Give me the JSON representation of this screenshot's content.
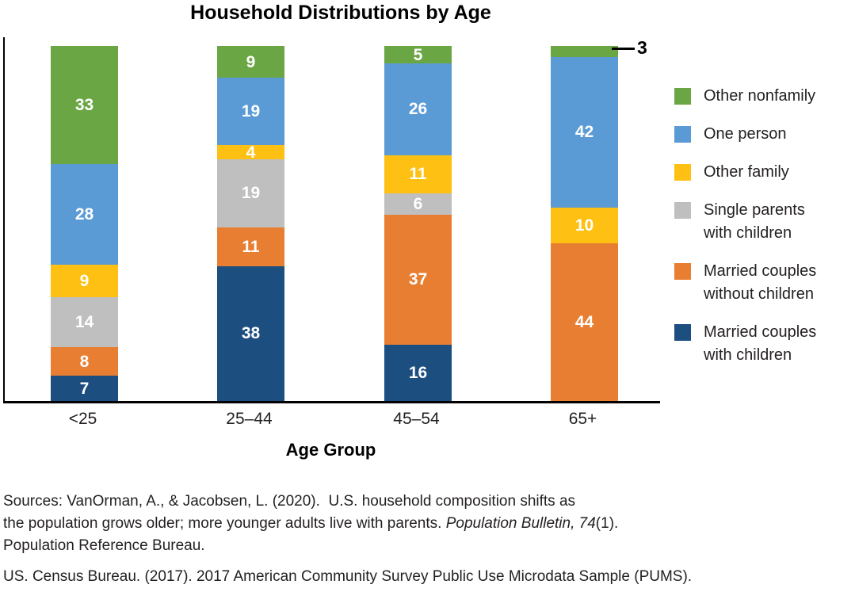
{
  "chart_data": {
    "type": "bar",
    "stacked": true,
    "normalized": "each bar drawn as 100% of column height",
    "title": "Household Distributions by Age",
    "xlabel": "Age Group",
    "ylabel": "",
    "categories": [
      "<25",
      "25–44",
      "45–54",
      "65+"
    ],
    "series": [
      {
        "name": "Married couples with children",
        "color": "#1C4E80",
        "values": [
          7,
          38,
          16,
          0
        ]
      },
      {
        "name": "Married couples without children",
        "color": "#E87E31",
        "values": [
          8,
          11,
          37,
          44
        ]
      },
      {
        "name": "Single parents with children",
        "color": "#BFBFBF",
        "values": [
          14,
          19,
          6,
          0
        ]
      },
      {
        "name": "Other family",
        "color": "#FDC013",
        "values": [
          9,
          4,
          11,
          10
        ]
      },
      {
        "name": "One person",
        "color": "#5B9BD5",
        "values": [
          28,
          19,
          26,
          42
        ]
      },
      {
        "name": "Other nonfamily",
        "color": "#6BA644",
        "values": [
          33,
          9,
          5,
          3
        ]
      }
    ],
    "annotation": {
      "category": "65+",
      "series": "Other nonfamily",
      "label": "3",
      "style": "external-callout-line"
    },
    "legend_position": "right",
    "grid": false,
    "axis_color": "#000000"
  },
  "legend": {
    "items": [
      {
        "label": "Other nonfamily",
        "color": "#6BA644"
      },
      {
        "label": "One person",
        "color": "#5B9BD5"
      },
      {
        "label": "Other family",
        "color": "#FDC013"
      },
      {
        "label": "Single parents\nwith children",
        "color": "#BFBFBF"
      },
      {
        "label": "Married couples\nwithout children",
        "color": "#E87E31"
      },
      {
        "label": "Married couples\nwith children",
        "color": "#1C4E80"
      }
    ]
  },
  "sources": {
    "line1": "Sources: VanOrman, A., & Jacobsen, L. (2020).  U.S. household composition shifts as",
    "line2_pre": "the population grows older; more younger adults live with parents. ",
    "line2_italic": "Population Bulletin, 74",
    "line2_post": "(1).",
    "line3": "Population Reference Bureau.",
    "census": "US. Census Bureau. (2017). 2017 American Community Survey Public Use Microdata Sample (PUMS)."
  }
}
